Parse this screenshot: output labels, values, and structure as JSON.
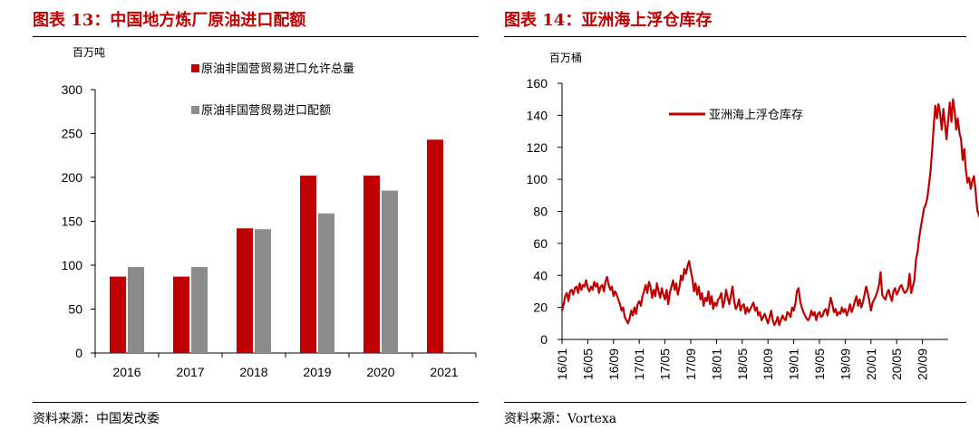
{
  "left_panel": {
    "title": "图表 13：中国地方炼厂原油进口配额",
    "source": "资料来源：中国发改委"
  },
  "right_panel": {
    "title": "图表 14：亚洲海上浮仓库存",
    "source": "资料来源：Vortexa"
  },
  "colors": {
    "accent": "#c00000",
    "gray": "#8c8c8c",
    "rule": "#000000"
  },
  "chart_data": [
    {
      "type": "bar",
      "unit_label": "百万吨",
      "categories": [
        "2016",
        "2017",
        "2018",
        "2019",
        "2020",
        "2021"
      ],
      "series": [
        {
          "name": "原油非国营贸易进口允许总量",
          "color": "#c00000",
          "values": [
            87,
            87,
            142,
            202,
            202,
            243
          ]
        },
        {
          "name": "原油非国营贸易进口配额",
          "color": "#8c8c8c",
          "values": [
            98,
            98,
            141,
            159,
            185,
            null
          ]
        }
      ],
      "ylim": [
        0,
        300
      ],
      "yticks": [
        0,
        50,
        100,
        150,
        200,
        250,
        300
      ],
      "legend": "top-center",
      "grid": false
    },
    {
      "type": "line",
      "unit_label": "百万桶",
      "series": [
        {
          "name": "亚洲海上浮仓库存",
          "color": "#c00000",
          "x_start": "2016-01",
          "x_step_months": 0.25,
          "values": [
            18,
            22,
            27,
            29,
            24,
            30,
            31,
            28,
            32,
            33,
            29,
            35,
            31,
            34,
            33,
            37,
            32,
            30,
            33,
            31,
            36,
            33,
            35,
            29,
            33,
            34,
            30,
            36,
            39,
            34,
            31,
            33,
            27,
            30,
            28,
            25,
            22,
            18,
            20,
            14,
            12,
            10,
            13,
            18,
            15,
            20,
            16,
            22,
            24,
            21,
            27,
            30,
            34,
            29,
            36,
            33,
            26,
            31,
            27,
            35,
            30,
            26,
            32,
            28,
            25,
            31,
            22,
            29,
            33,
            37,
            31,
            35,
            28,
            33,
            40,
            37,
            44,
            41,
            46,
            49,
            43,
            38,
            30,
            35,
            28,
            33,
            25,
            29,
            21,
            26,
            24,
            30,
            22,
            27,
            19,
            23,
            21,
            25,
            26,
            29,
            20,
            24,
            31,
            26,
            22,
            28,
            33,
            24,
            19,
            21,
            25,
            18,
            21,
            22,
            16,
            20,
            17,
            19,
            21,
            23,
            18,
            20,
            15,
            17,
            12,
            14,
            16,
            13,
            10,
            14,
            18,
            12,
            9,
            11,
            14,
            9,
            12,
            15,
            13,
            12,
            17,
            16,
            14,
            20,
            18,
            22,
            30,
            32,
            24,
            20,
            17,
            15,
            13,
            12,
            14,
            18,
            15,
            17,
            12,
            16,
            17,
            14,
            15,
            18,
            19,
            15,
            20,
            26,
            22,
            17,
            19,
            15,
            17,
            16,
            20,
            17,
            19,
            15,
            18,
            22,
            17,
            20,
            24,
            27,
            21,
            25,
            20,
            23,
            28,
            33,
            29,
            24,
            18,
            23,
            25,
            27,
            30,
            34,
            42,
            28,
            26,
            25,
            29,
            31,
            27,
            24,
            30,
            32,
            28,
            30,
            33,
            34,
            31,
            29,
            30,
            32,
            41,
            29,
            33,
            37,
            50,
            55,
            64,
            70,
            76,
            82,
            84,
            88,
            96,
            105,
            118,
            133,
            146,
            138,
            147,
            141,
            131,
            144,
            135,
            125,
            137,
            148,
            136,
            150,
            143,
            131,
            138,
            129,
            125,
            112,
            119,
            106,
            98,
            101,
            94,
            99,
            102,
            93,
            81,
            78,
            75,
            83,
            80,
            72,
            69
          ]
        }
      ],
      "xticklabels": [
        "16/01",
        "16/05",
        "16/09",
        "17/01",
        "17/05",
        "17/09",
        "18/01",
        "18/05",
        "18/09",
        "19/01",
        "19/05",
        "19/09",
        "20/01",
        "20/05",
        "20/09"
      ],
      "x_tick_step_months": 4,
      "ylim": [
        0,
        160
      ],
      "yticks": [
        0,
        20,
        40,
        60,
        80,
        100,
        120,
        140,
        160
      ],
      "legend": "top-center",
      "grid": false
    }
  ]
}
